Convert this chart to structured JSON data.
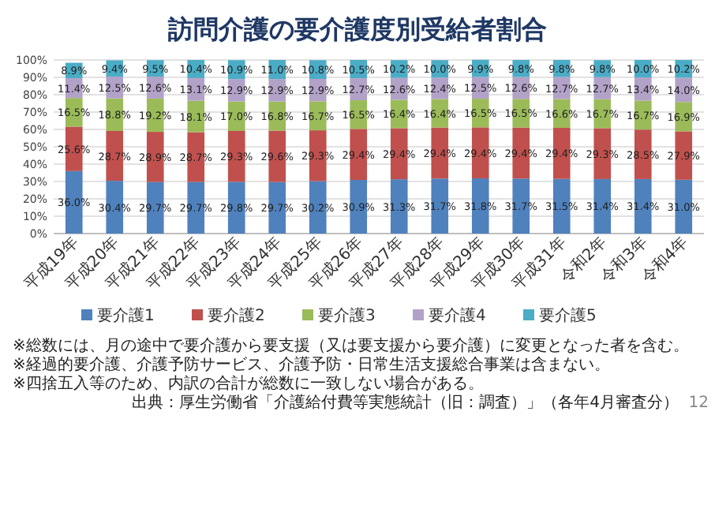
{
  "chart_data": {
    "type": "bar",
    "stacked": true,
    "title": "訪問介護の要介護度別受給者割合",
    "categories": [
      "平成19年",
      "平成20年",
      "平成21年",
      "平成22年",
      "平成23年",
      "平成24年",
      "平成25年",
      "平成26年",
      "平成27年",
      "平成28年",
      "平成29年",
      "平成30年",
      "平成31年",
      "令和2年",
      "令和3年",
      "令和4年"
    ],
    "series": [
      {
        "name": "要介護1",
        "color": "#4f81bd",
        "values": [
          36.0,
          30.4,
          29.7,
          29.7,
          29.8,
          29.7,
          30.2,
          30.9,
          31.3,
          31.7,
          31.8,
          31.7,
          31.5,
          31.4,
          31.4,
          31.0
        ],
        "value_labels": [
          "36.0%",
          "30.4%",
          "29.7%",
          "29.7%",
          "29.8%",
          "29.7%",
          "30.2%",
          "30.9%",
          "31.3%",
          "31.7%",
          "31.8%",
          "31.7%",
          "31.5%",
          "31.4%",
          "31.4%",
          "31.0%"
        ]
      },
      {
        "name": "要介護2",
        "color": "#c0504d",
        "values": [
          25.6,
          28.7,
          28.9,
          28.7,
          29.3,
          29.6,
          29.3,
          29.4,
          29.4,
          29.4,
          29.4,
          29.4,
          29.4,
          29.3,
          28.5,
          27.9
        ],
        "value_labels": [
          "25.6%",
          "28.7%",
          "28.9%",
          "28.7%",
          "29.3%",
          "29.6%",
          "29.3%",
          "29.4%",
          "29.4%",
          "29.4%",
          "29.4%",
          "29.4%",
          "29.4%",
          "29.3%",
          "28.5%",
          "27.9%"
        ]
      },
      {
        "name": "要介護3",
        "color": "#9bbb59",
        "values": [
          16.5,
          18.8,
          19.2,
          18.1,
          17.0,
          16.8,
          16.7,
          16.5,
          16.4,
          16.4,
          16.5,
          16.5,
          16.6,
          16.7,
          16.7,
          16.9
        ],
        "value_labels": [
          "16.5%",
          "18.8%",
          "19.2%",
          "18.1%",
          "17.0%",
          "16.8%",
          "16.7%",
          "16.5%",
          "16.4%",
          "16.4%",
          "16.5%",
          "16.5%",
          "16.6%",
          "16.7%",
          "16.7%",
          "16.9%"
        ]
      },
      {
        "name": "要介護4",
        "color": "#b3a2c7",
        "values": [
          11.4,
          12.5,
          12.6,
          13.1,
          12.9,
          12.9,
          12.9,
          12.7,
          12.6,
          12.4,
          12.5,
          12.6,
          12.7,
          12.7,
          13.4,
          14.0
        ],
        "value_labels": [
          "11.4%",
          "12.5%",
          "12.6%",
          "13.1%",
          "12.9%",
          "12.9%",
          "12.9%",
          "12.7%",
          "12.6%",
          "12.4%",
          "12.5%",
          "12.6%",
          "12.7%",
          "12.7%",
          "13.4%",
          "14.0%"
        ]
      },
      {
        "name": "要介護5",
        "color": "#4bacc6",
        "values": [
          8.9,
          9.4,
          9.5,
          10.4,
          10.9,
          11.0,
          10.8,
          10.5,
          10.2,
          10.0,
          9.9,
          9.8,
          9.8,
          9.8,
          10.0,
          10.2
        ],
        "value_labels": [
          "8.9%",
          "9.4%",
          "9.5%",
          "10.4%",
          "10.9%",
          "11.0%",
          "10.8%",
          "10.5%",
          "10.2%",
          "10.0%",
          "9.9%",
          "9.8%",
          "9.8%",
          "9.8%",
          "10.0%",
          "10.2%"
        ]
      }
    ],
    "ylim": [
      0,
      100
    ],
    "yticks": [
      {
        "value": 0,
        "label": "0%"
      },
      {
        "value": 10,
        "label": "10%"
      },
      {
        "value": 20,
        "label": "20%"
      },
      {
        "value": 30,
        "label": "30%"
      },
      {
        "value": 40,
        "label": "40%"
      },
      {
        "value": 50,
        "label": "50%"
      },
      {
        "value": 60,
        "label": "60%"
      },
      {
        "value": 70,
        "label": "70%"
      },
      {
        "value": 80,
        "label": "80%"
      },
      {
        "value": 90,
        "label": "90%"
      },
      {
        "value": 100,
        "label": "100%"
      }
    ],
    "grid": "y",
    "legend": "bottom",
    "annotations": [
      "※総数には、月の途中で要介護から要支援（又は要支援から要介護）に変更となった者を含む。",
      "※経過的要介護、介護予防サービス、介護予防・日常生活支援総合事業は含まない。",
      "※四捨五入等のため、内訳の合計が総数に一致しない場合がある。",
      "出典：厚生労働省「介護給付費等実態統計（旧：調査）」（各年4月審査分）",
      "12"
    ]
  }
}
